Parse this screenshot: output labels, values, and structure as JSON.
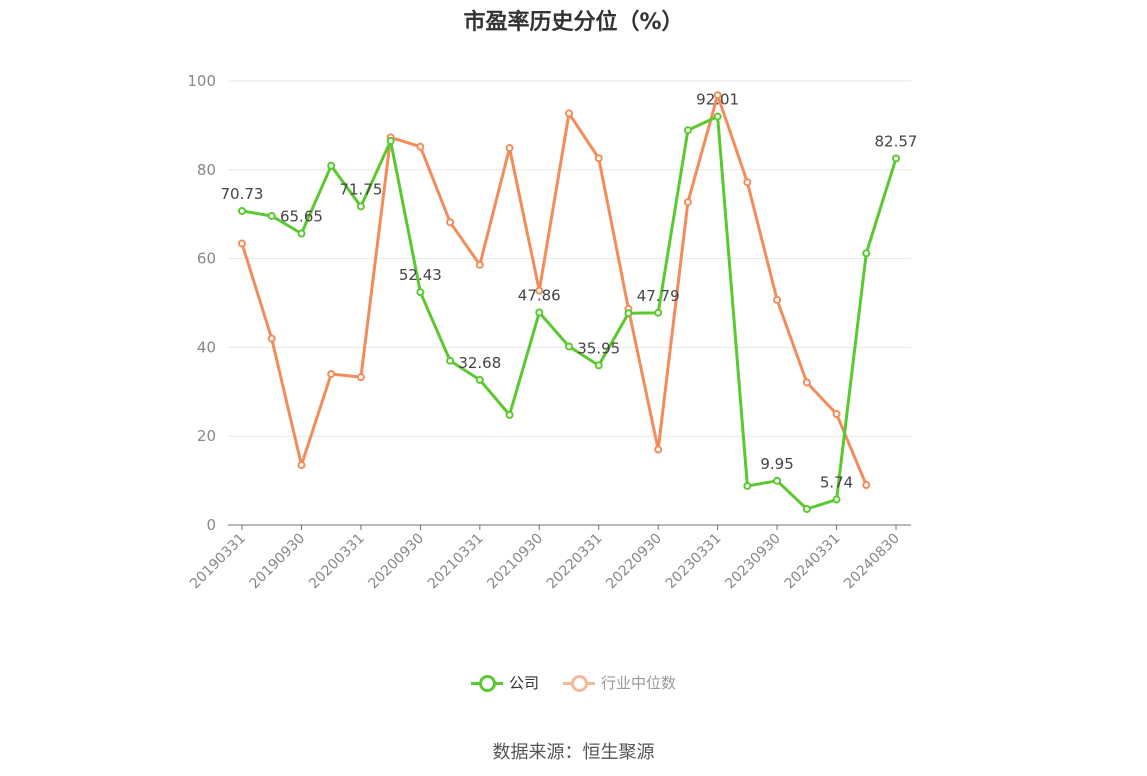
{
  "chart_data": {
    "type": "line",
    "title": "市盈率历史分位（%）",
    "ylim": [
      0,
      100
    ],
    "yticks": [
      0,
      20,
      40,
      60,
      80,
      100
    ],
    "grid": true,
    "legend_position": "bottom-center",
    "xtick_labels": [
      "20190331",
      "20190930",
      "20200331",
      "20200930",
      "20210331",
      "20210930",
      "20220331",
      "20220930",
      "20230331",
      "20230930",
      "20240331",
      "20240830"
    ],
    "x": [
      "20190331",
      "20190630",
      "20190930",
      "20191231",
      "20200331",
      "20200630",
      "20200930",
      "20201231",
      "20210331",
      "20210630",
      "20210930",
      "20211231",
      "20220331",
      "20220630",
      "20220930",
      "20221231",
      "20230331",
      "20230630",
      "20230930",
      "20231231",
      "20240331",
      "20240630",
      "20240830"
    ],
    "series": [
      {
        "name": "公司",
        "color": "#5ac92f",
        "values": [
          70.73,
          69.6,
          65.65,
          80.9,
          71.75,
          86.5,
          52.43,
          37.0,
          32.68,
          24.8,
          47.86,
          40.2,
          35.95,
          47.7,
          47.79,
          88.9,
          92.01,
          8.8,
          9.95,
          3.6,
          5.74,
          61.2,
          82.57
        ],
        "labels": {
          "0": "70.73",
          "2": "65.65",
          "4": "71.75",
          "6": "52.43",
          "8": "32.68",
          "10": "47.86",
          "12": "35.95",
          "14": "47.79",
          "16": "92.01",
          "18": "9.95",
          "20": "5.74",
          "22": "82.57"
        }
      },
      {
        "name": "行业中位数",
        "color": "#f28c5a",
        "values": [
          63.4,
          42.0,
          13.5,
          34.0,
          33.3,
          87.3,
          85.2,
          68.2,
          58.6,
          84.9,
          52.8,
          92.7,
          82.6,
          48.7,
          17.0,
          72.7,
          96.8,
          77.2,
          50.7,
          32.1,
          25.0,
          9.0,
          null
        ]
      }
    ]
  },
  "legend": {
    "company_label": "公司",
    "industry_label": "行业中位数"
  },
  "source_text": "数据来源：恒生聚源"
}
